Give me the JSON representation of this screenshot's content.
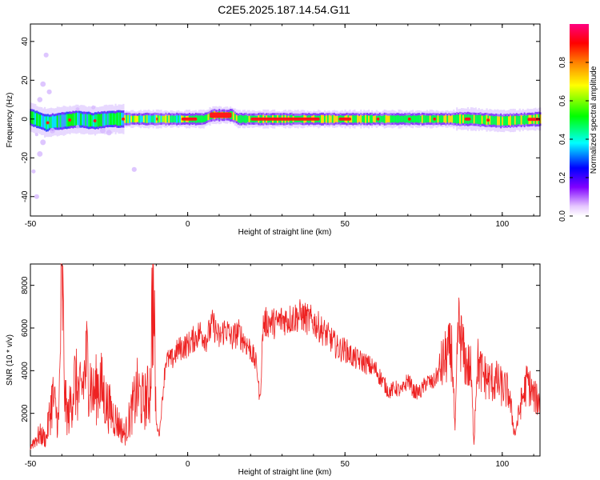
{
  "title": "C2E5.2025.187.14.54.G11",
  "chart_data": [
    {
      "type": "heatmap",
      "xlabel": "Height of straight line (km)",
      "ylabel": "Frequency (Hz)",
      "xlim": [
        -50,
        112
      ],
      "ylim": [
        -50,
        49
      ],
      "xticks": [
        "-50",
        "0",
        "50",
        "100"
      ],
      "xtick_values": [
        -50,
        0,
        50,
        100
      ],
      "yticks": [
        "-40",
        "-20",
        "0",
        "20",
        "40"
      ],
      "ytick_values": [
        -40,
        -20,
        0,
        20,
        40
      ],
      "ridge_center_hz": [
        [
          -50,
          1
        ],
        [
          -45,
          -2
        ],
        [
          -40,
          -1
        ],
        [
          -35,
          0
        ],
        [
          -30,
          -1
        ],
        [
          -25,
          0
        ],
        [
          -20,
          0
        ],
        [
          -10,
          0
        ],
        [
          0,
          0
        ],
        [
          5,
          0
        ],
        [
          8,
          2
        ],
        [
          14,
          2
        ],
        [
          16,
          0
        ],
        [
          30,
          0
        ],
        [
          60,
          0
        ],
        [
          90,
          0
        ],
        [
          100,
          -1
        ],
        [
          112,
          0
        ]
      ],
      "colorbar": {
        "label": "Normalized spectral amplitude",
        "range": [
          0,
          1
        ],
        "ticks": [
          "0.0",
          "0.2",
          "0.4",
          "0.6",
          "0.8"
        ],
        "tick_values": [
          0.0,
          0.2,
          0.4,
          0.6,
          0.8
        ],
        "colormap": [
          "#ffffff",
          "#e6c8ff",
          "#8000ff",
          "#0000ff",
          "#00ffff",
          "#00ff00",
          "#ffff00",
          "#ff8000",
          "#ff0000",
          "#ff0080"
        ]
      }
    },
    {
      "type": "line",
      "xlabel": "Height of straight line (km)",
      "ylabel": "SNR (10 * v/v)",
      "xlim": [
        -50,
        112
      ],
      "ylim": [
        0,
        9000
      ],
      "xticks": [
        "-50",
        "0",
        "50",
        "100"
      ],
      "xtick_values": [
        -50,
        0,
        50,
        100
      ],
      "yticks": [
        "2000",
        "4000",
        "6000",
        "8000"
      ],
      "ytick_values": [
        2000,
        4000,
        6000,
        8000
      ],
      "series": [
        {
          "color": "#ee2222",
          "x": [
            -50,
            -47,
            -45,
            -43,
            -41,
            -40,
            -39,
            -38,
            -36,
            -34,
            -32,
            -30,
            -28,
            -26,
            -24,
            -22,
            -20,
            -18,
            -16,
            -14,
            -12,
            -11,
            -10,
            -9,
            -7,
            -5,
            -3,
            0,
            2,
            4,
            6,
            8,
            10,
            12,
            14,
            16,
            18,
            20,
            22,
            23,
            24,
            26,
            28,
            30,
            32,
            34,
            36,
            38,
            40,
            42,
            44,
            46,
            48,
            50,
            52,
            54,
            56,
            58,
            60,
            62,
            64,
            66,
            68,
            70,
            72,
            74,
            76,
            78,
            80,
            82,
            84,
            85,
            86,
            88,
            90,
            91,
            92,
            93,
            94,
            96,
            98,
            100,
            102,
            104,
            106,
            108,
            110,
            112
          ],
          "values": [
            500,
            1000,
            800,
            2800,
            1500,
            8800,
            2500,
            1800,
            3500,
            2800,
            4500,
            2800,
            3500,
            2500,
            2000,
            1500,
            1000,
            2000,
            3000,
            2500,
            3000,
            8500,
            1500,
            1000,
            4500,
            4500,
            5000,
            5200,
            5500,
            5800,
            5500,
            6200,
            5500,
            6000,
            5500,
            5800,
            5400,
            5000,
            4200,
            2500,
            6200,
            6300,
            6200,
            6400,
            6400,
            6500,
            6600,
            6400,
            6300,
            6000,
            5700,
            5400,
            5000,
            5000,
            4700,
            4500,
            4400,
            4200,
            4000,
            3500,
            3000,
            3200,
            3000,
            3600,
            3000,
            3000,
            3500,
            3400,
            4000,
            4600,
            5000,
            1000,
            6200,
            4500,
            4000,
            600,
            4500,
            4000,
            3800,
            3500,
            3500,
            3200,
            3000,
            1000,
            2500,
            3500,
            2800,
            2500
          ]
        }
      ]
    }
  ]
}
